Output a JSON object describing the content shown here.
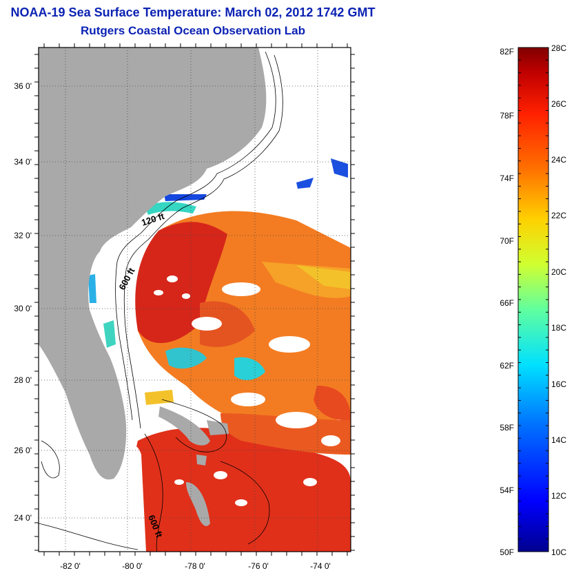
{
  "title": "NOAA-19 Sea Surface Temperature:  March 02, 2012 1742 GMT",
  "subtitle": "Rutgers Coastal Ocean Observation Lab",
  "map": {
    "lat_labels": [
      "36 0'",
      "34 0'",
      "32 0'",
      "30 0'",
      "28 0'",
      "26 0'",
      "24 0'"
    ],
    "lon_labels": [
      "-82 0'",
      "-80 0'",
      "-78 0'",
      "-76 0'",
      "-74 0'"
    ],
    "isobath_labels": [
      "120 ft",
      "600 ft",
      "600 ft"
    ],
    "colors": {
      "land": "#a9a9a9",
      "cloud": "#ffffff",
      "warm": "#d9231b",
      "mid": "#f2711c"
    }
  },
  "colorbar": {
    "fahrenheit_labels": [
      "82F",
      "78F",
      "74F",
      "70F",
      "66F",
      "62F",
      "58F",
      "54F",
      "50F"
    ],
    "celsius_labels": [
      "28C",
      "26C",
      "24C",
      "22C",
      "20C",
      "18C",
      "16C",
      "14C",
      "12C",
      "10C"
    ],
    "range_c": [
      10,
      28
    ],
    "colors": [
      "#00008f",
      "#0000ff",
      "#0070ff",
      "#00e0ff",
      "#60ff9f",
      "#d0ff30",
      "#ffd000",
      "#ff7000",
      "#ff2000",
      "#c00000",
      "#800000"
    ]
  }
}
